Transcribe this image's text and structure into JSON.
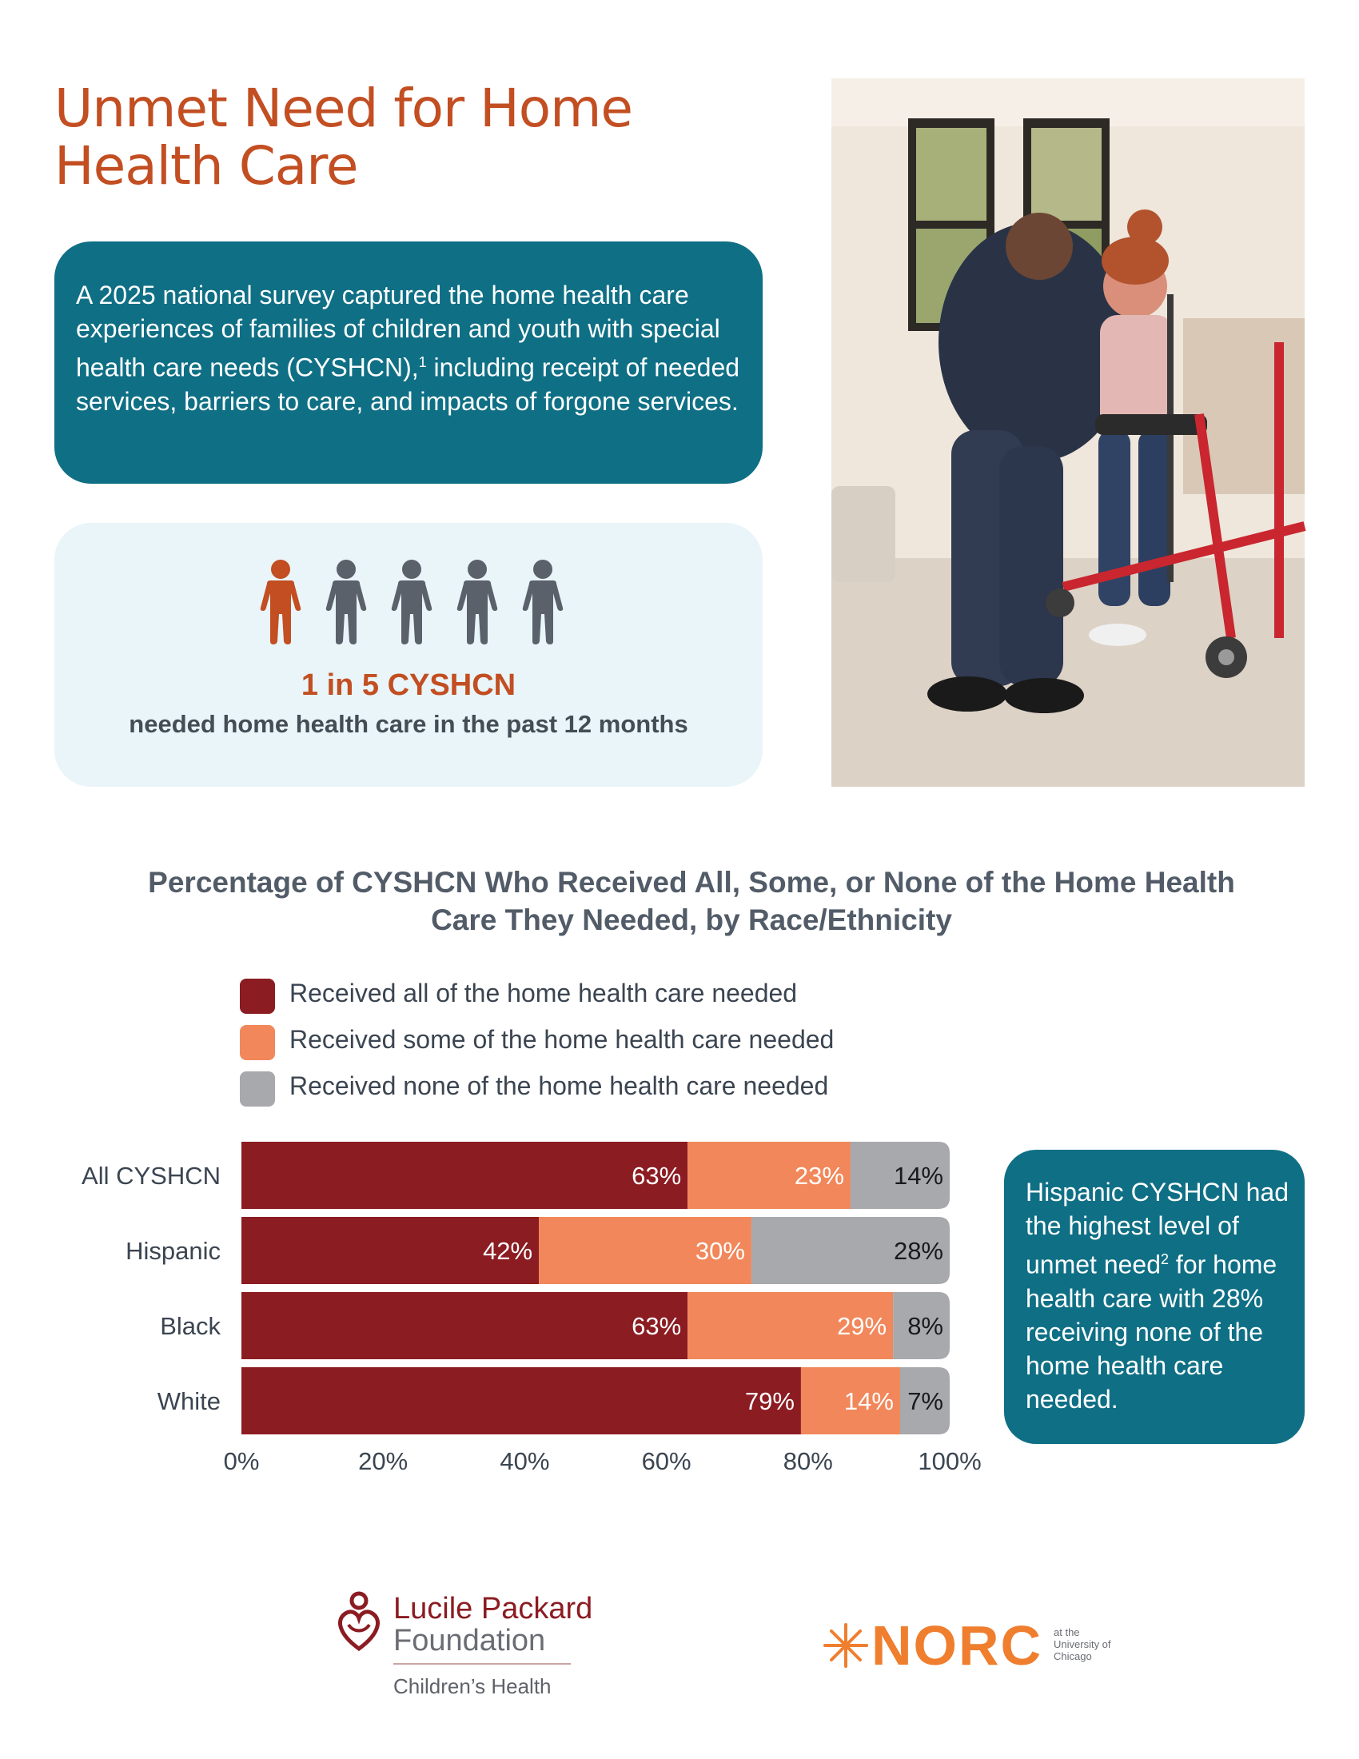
{
  "header": {
    "title_line1": "Unmet Need for Home",
    "title_line2": "Health Care"
  },
  "intro": {
    "text_before_sup": "A 2025 national survey captured the home health care experiences of families of children and youth with special health care needs (CYSHCN),",
    "footnote_marker": "1",
    "text_after_sup": " including receipt of needed services, barriers to care, and impacts of forgone services."
  },
  "stat": {
    "highlight": "1 in 5 CYSHCN",
    "caption": "needed home health care in the past 12 months",
    "people_total": 5,
    "people_highlighted": 1,
    "highlight_color": "#c24e22",
    "person_color": "#5b616b"
  },
  "chart_data": {
    "type": "bar",
    "orientation": "horizontal",
    "stacked": true,
    "title_line1": "Percentage of CYSHCN Who Received All, Some, or None of the Home Health",
    "title_line2": "Care They Needed, by Race/Ethnicity",
    "categories": [
      "All CYSHCN",
      "Hispanic",
      "Black",
      "White"
    ],
    "series": [
      {
        "name": "Received all of the home health care needed",
        "values": [
          63,
          42,
          63,
          79
        ],
        "color": "#8b1c22",
        "label_color": "#ffffff"
      },
      {
        "name": "Received some of the home health care needed",
        "values": [
          23,
          30,
          29,
          14
        ],
        "color": "#f1875a",
        "label_color": "#ffffff"
      },
      {
        "name": "Received none of the home health care needed",
        "values": [
          14,
          28,
          8,
          7
        ],
        "color": "#a7a9ac",
        "label_color": "#1a1a1a"
      }
    ],
    "xlim": [
      0,
      100
    ],
    "x_ticks": [
      "0%",
      "20%",
      "40%",
      "60%",
      "80%",
      "100%"
    ],
    "value_suffix": "%",
    "legend_position": "top",
    "grid": false
  },
  "callout": {
    "text_before_sup": "Hispanic CYSHCN had the highest level of unmet need",
    "footnote_marker": "2",
    "text_after_sup": " for home health care with 28% receiving none of the home health care needed."
  },
  "logos": {
    "lpf_line1": "Lucile Packard",
    "lpf_line2": "Foundation",
    "lpf_sub": "Children’s Health",
    "norc_word": "NORC",
    "norc_tag1": "at the",
    "norc_tag2": "University of",
    "norc_tag3": "Chicago"
  }
}
